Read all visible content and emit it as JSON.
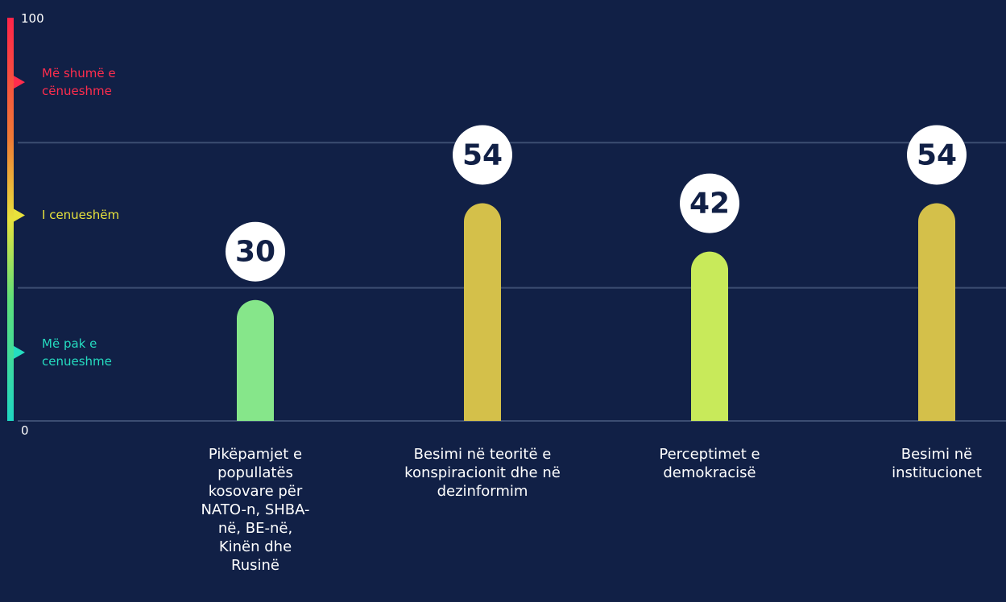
{
  "chart_data": {
    "type": "bar",
    "categories": [
      "Pikëpamjet e popullatës kosovare për NATO-n, SHBA-në, BE-në, Kinën dhe Rusinë",
      "Besimi në teoritë e konspiracionit dhe në dezinformim",
      "Perceptimet e demokracisë",
      "Besimi në institucionet"
    ],
    "values": [
      30,
      54,
      42,
      54
    ],
    "colors": [
      "#86e68a",
      "#d4c04a",
      "#c8ea5a",
      "#d4c04a"
    ],
    "ylim": [
      0,
      100
    ],
    "yticks": [
      0,
      100
    ],
    "grid_lines": [
      33,
      69
    ],
    "zones": [
      {
        "label": "Më shumë e cënueshme",
        "value": 84,
        "color": "#ff2d4d"
      },
      {
        "label": "I cenueshëm",
        "value": 51,
        "color": "#e8e23c"
      },
      {
        "label": "Më pak e cenueshme",
        "value": 17,
        "color": "#25dcc0"
      }
    ]
  }
}
